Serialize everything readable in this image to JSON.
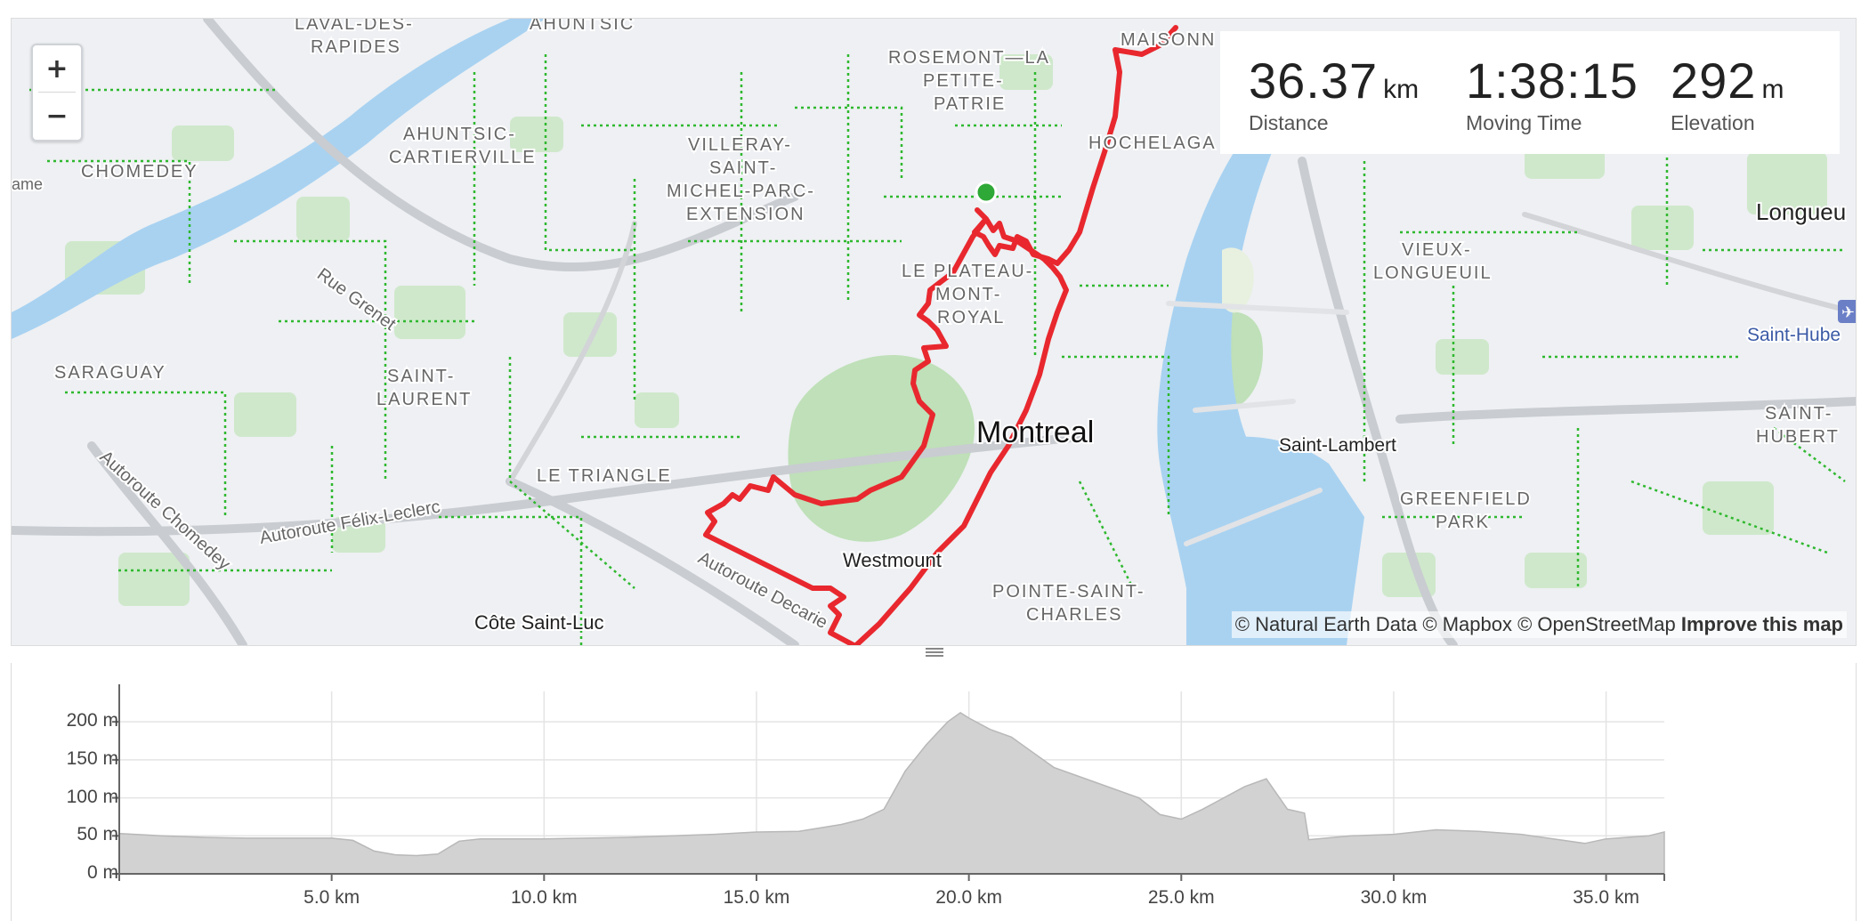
{
  "map": {
    "zoom_in_label": "+",
    "zoom_out_label": "−",
    "colors": {
      "route": "#e8282e",
      "bike_lanes": "#2eb82e",
      "water": "#a9d2f1",
      "parks": "#c8e6c4",
      "roads": "#d7d9dd",
      "start": "#2ea836"
    },
    "labels": {
      "laval": "LAVAL-DES-",
      "laval2": "RAPIDES",
      "ahuntsic_top": "AHUNTSIC",
      "rosemont1": "ROSEMONT—LA",
      "rosemont2": "PETITE-",
      "rosemont3": "PATRIE",
      "maisonn": "MAISONN",
      "ahuntsic_c1": "AHUNTSIC-",
      "ahuntsic_c2": "CARTIERVILLE",
      "chomedey": "CHOMEDEY",
      "ame": "ame",
      "villeray1": "VILLERAY-",
      "villeray2": "SAINT-",
      "villeray3": "MICHEL-PARC-",
      "villeray4": "EXTENSION",
      "hochelaga": "HOCHELAGA",
      "longueuil": "Longueu",
      "plateau1": "LE PLATEAU-",
      "plateau2": "MONT-",
      "plateau3": "ROYAL",
      "vieux1": "VIEUX-",
      "vieux2": "LONGUEUIL",
      "rue_grenet": "Rue Grenet",
      "saint_hubert_airport": "Saint-Hube",
      "saraguay": "SARAGUAY",
      "saint_laurent1": "SAINT-",
      "saint_laurent2": "LAURENT",
      "montreal": "Montreal",
      "saint_lambert": "Saint-Lambert",
      "saint_hubert1": "SAINT-",
      "saint_hubert2": "HUBERT",
      "le_triangle": "LE TRIANGLE",
      "greenfield1": "GREENFIELD",
      "greenfield2": "PARK",
      "autoroute_chomedey": "Autoroute Chomedey",
      "autoroute_felix": "Autoroute Félix-Leclerc",
      "westmount": "Westmount",
      "autoroute_decarie": "Autoroute Decarie",
      "pointe1": "POINTE-SAINT-",
      "pointe2": "CHARLES",
      "cote_saint_luc": "Côte Saint-Luc"
    },
    "attribution": "© Natural Earth Data © Mapbox © OpenStreetMap",
    "improve": "Improve this map"
  },
  "stats": {
    "distance": {
      "value": "36.37",
      "unit": "km",
      "label": "Distance"
    },
    "moving_time": {
      "value": "1:38:15",
      "label": "Moving Time"
    },
    "elevation": {
      "value": "292",
      "unit": "m",
      "label": "Elevation"
    }
  },
  "chart_data": {
    "type": "area",
    "xlabel": "",
    "ylabel": "",
    "x_ticks": [
      "5.0 km",
      "10.0 km",
      "15.0 km",
      "20.0 km",
      "25.0 km",
      "30.0 km",
      "35.0 km"
    ],
    "y_ticks": [
      "200 m",
      "150 m",
      "100 m",
      "50 m",
      "0 m"
    ],
    "xlim": [
      0,
      36.37
    ],
    "ylim": [
      0,
      240
    ],
    "grid": true,
    "x": [
      0,
      1,
      2,
      3,
      4,
      5,
      5.5,
      6,
      6.5,
      7,
      7.5,
      8,
      8.5,
      9,
      10,
      11,
      12,
      13,
      14,
      15,
      16,
      17,
      17.5,
      18,
      18.5,
      19,
      19.5,
      19.8,
      20,
      20.5,
      21,
      21.5,
      22,
      23,
      24,
      24.5,
      25,
      25.5,
      26,
      26.5,
      27,
      27.5,
      27.9,
      28,
      29,
      30,
      31,
      32,
      33,
      34,
      34.5,
      35,
      36,
      36.37
    ],
    "y": [
      53,
      50,
      48,
      47,
      47,
      47,
      44,
      30,
      25,
      24,
      26,
      43,
      46,
      46,
      46,
      47,
      48,
      50,
      52,
      55,
      56,
      65,
      72,
      85,
      135,
      170,
      200,
      212,
      205,
      190,
      180,
      160,
      140,
      120,
      100,
      78,
      72,
      85,
      100,
      115,
      125,
      85,
      80,
      45,
      50,
      52,
      58,
      56,
      52,
      44,
      40,
      46,
      50,
      55
    ]
  }
}
